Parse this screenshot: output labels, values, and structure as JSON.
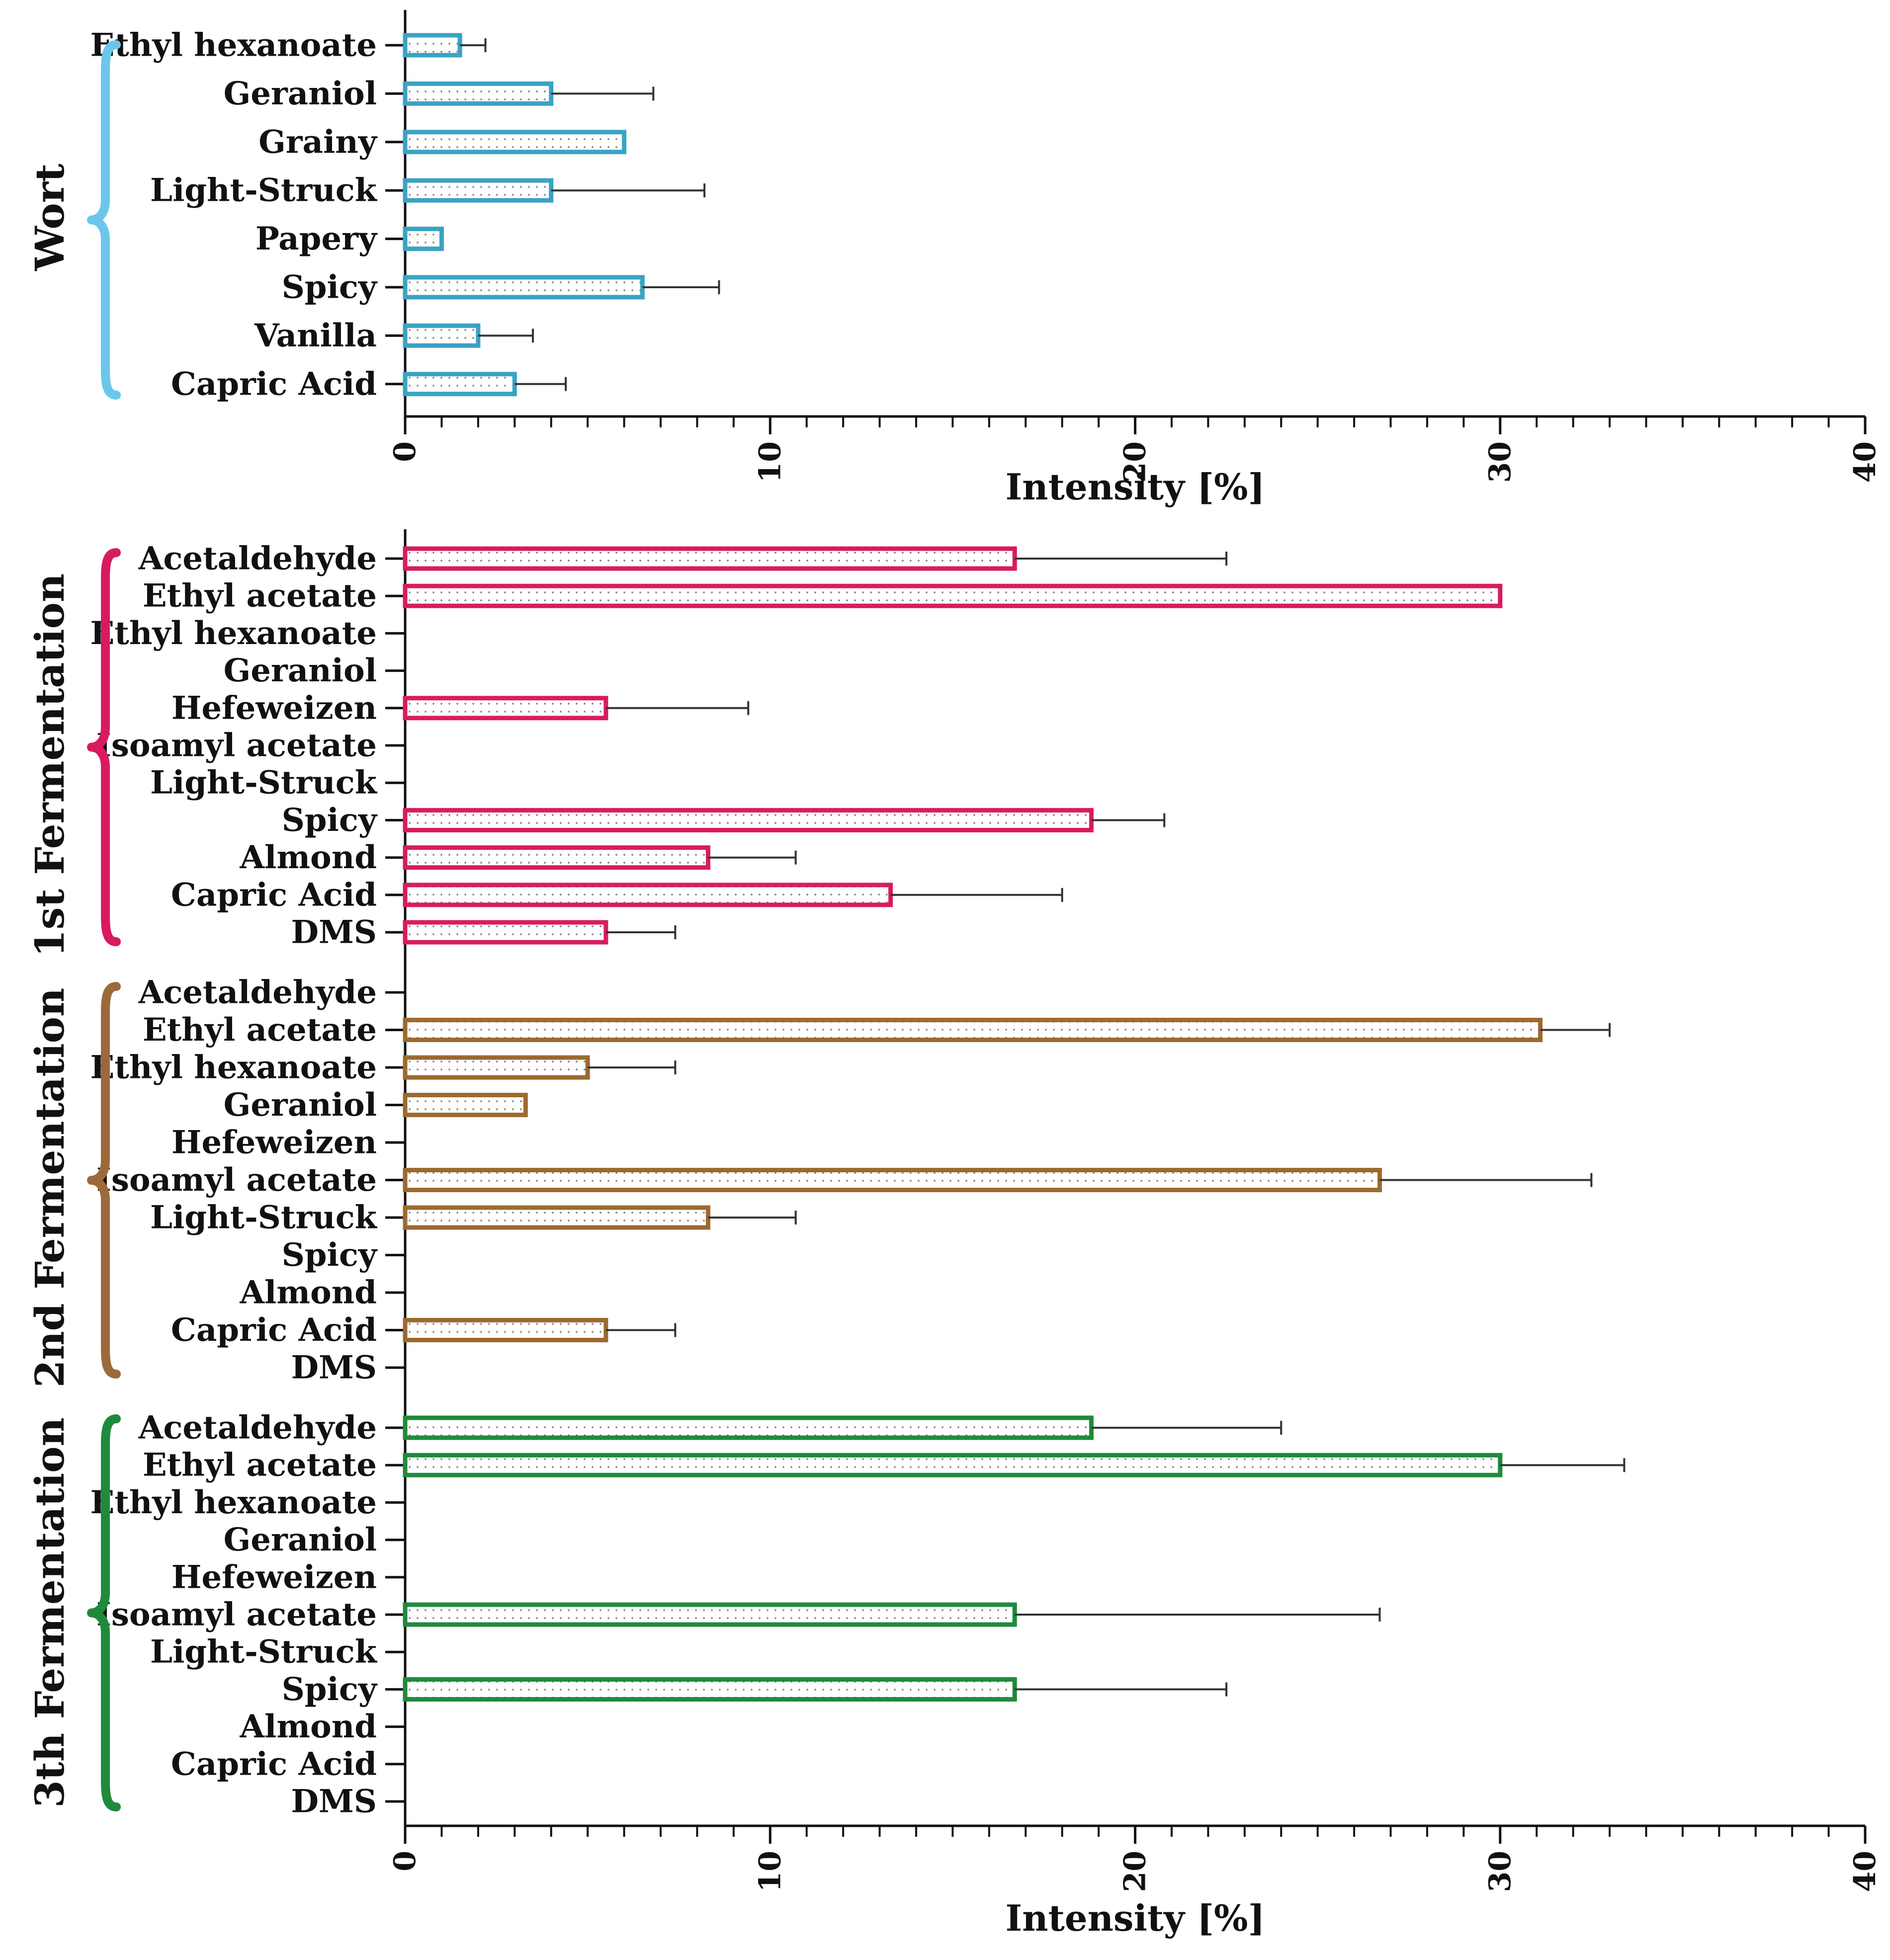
{
  "chart_data": {
    "type": "bar",
    "orientation": "horizontal",
    "xlabel": "Intensity [%]",
    "xlim": [
      0,
      40
    ],
    "x_ticks": [
      0,
      10,
      20,
      30,
      40
    ],
    "panels": [
      {
        "panel": "top",
        "xlabel": "Intensity [%]",
        "groups": [
          {
            "name": "Wort",
            "color": "#3aa3c3",
            "brace_color": "#6cc6ec",
            "categories": [
              "Ethyl hexanoate",
              "Geraniol",
              "Grainy",
              "Light-Struck",
              "Papery",
              "Spicy",
              "Vanilla",
              "Capric Acid"
            ],
            "values": [
              1.5,
              4.0,
              6.0,
              4.0,
              1.0,
              6.5,
              2.0,
              3.0
            ],
            "errors": [
              0.7,
              2.8,
              0,
              4.2,
              0,
              2.1,
              1.5,
              1.4
            ]
          }
        ]
      },
      {
        "panel": "bottom",
        "xlabel": "Intensity [%]",
        "groups": [
          {
            "name": "1st Fermentation",
            "color": "#d81b60",
            "brace_color": "#d81b60",
            "categories": [
              "Acetaldehyde",
              "Ethyl acetate",
              "Ethyl hexanoate",
              "Geraniol",
              "Hefeweizen",
              "Isoamyl acetate",
              "Light-Struck",
              "Spicy",
              "Almond",
              "Capric Acid",
              "DMS"
            ],
            "values": [
              16.7,
              30.0,
              0,
              0,
              5.5,
              0,
              0,
              18.8,
              8.3,
              13.3,
              5.5
            ],
            "errors": [
              5.8,
              0,
              0,
              0,
              3.9,
              0,
              0,
              2.0,
              2.4,
              4.7,
              1.9
            ]
          },
          {
            "name": "2nd Fermentation",
            "color": "#9c6a2e",
            "brace_color": "#9c6a3a",
            "categories": [
              "Acetaldehyde",
              "Ethyl acetate",
              "Ethyl hexanoate",
              "Geraniol",
              "Hefeweizen",
              "Isoamyl acetate",
              "Light-Struck",
              "Spicy",
              "Almond",
              "Capric Acid",
              "DMS"
            ],
            "values": [
              0,
              31.1,
              5.0,
              3.3,
              0,
              26.7,
              8.3,
              0,
              0,
              5.5,
              0
            ],
            "errors": [
              0,
              1.9,
              2.4,
              0,
              0,
              5.8,
              2.4,
              0,
              0,
              1.9,
              0
            ]
          },
          {
            "name": "3th Fermentation",
            "color": "#1f8a3c",
            "brace_color": "#1f8a3c",
            "categories": [
              "Acetaldehyde",
              "Ethyl acetate",
              "Ethyl hexanoate",
              "Geraniol",
              "Hefeweizen",
              "Isoamyl acetate",
              "Light-Struck",
              "Spicy",
              "Almond",
              "Capric Acid",
              "DMS"
            ],
            "values": [
              18.8,
              30.0,
              0,
              0,
              0,
              16.7,
              0,
              16.7,
              0,
              0,
              0
            ],
            "errors": [
              5.2,
              3.4,
              0,
              0,
              0,
              10.0,
              0,
              5.8,
              0,
              0,
              0
            ]
          }
        ]
      }
    ]
  }
}
